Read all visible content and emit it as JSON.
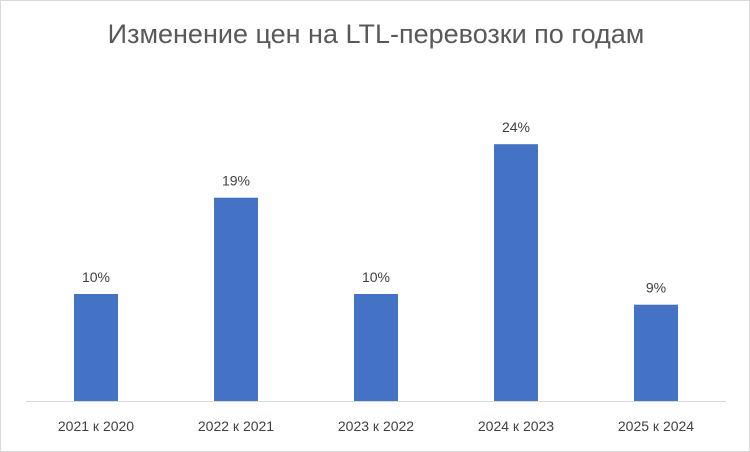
{
  "chart_data": {
    "type": "bar",
    "title": "Изменение цен на LTL-перевозки по годам",
    "xlabel": "",
    "ylabel": "",
    "categories": [
      "2021 к 2020",
      "2022 к 2021",
      "2023 к 2022",
      "2024 к 2023",
      "2025 к 2024"
    ],
    "values": [
      10,
      19,
      10,
      24,
      9
    ],
    "data_labels": [
      "10%",
      "19%",
      "10%",
      "24%",
      "9%"
    ],
    "ylim": [
      0,
      30
    ],
    "grid": false,
    "legend": "none",
    "colors": {
      "bar": "#4472c4",
      "axis": "#d9d9d9"
    }
  }
}
